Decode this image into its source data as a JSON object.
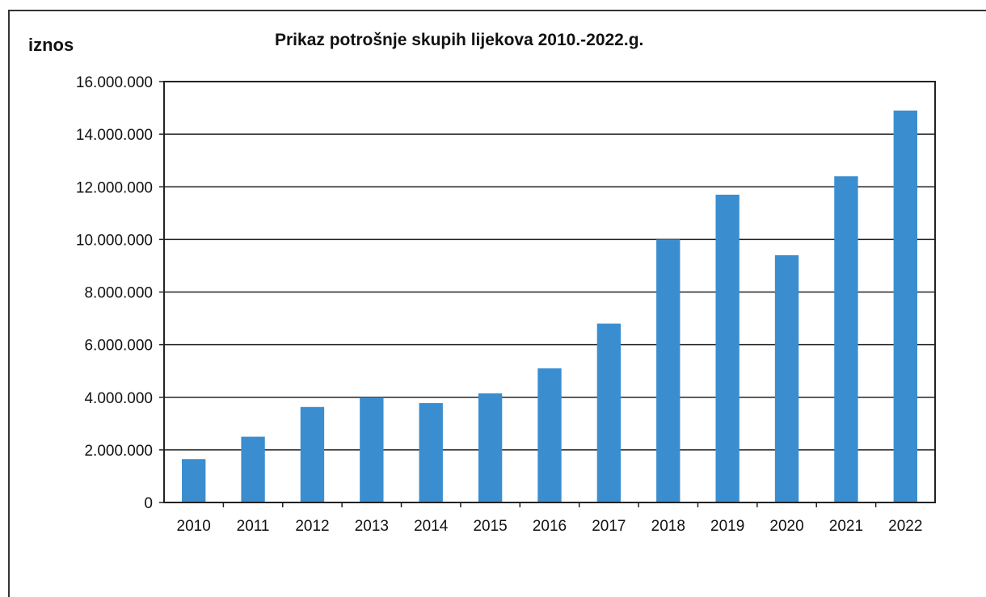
{
  "chart_data": {
    "type": "bar",
    "title": "Prikaz potrošnje skupih lijekova 2010.-2022.g.",
    "ylabel": "iznos",
    "xlabel": "",
    "categories": [
      "2010",
      "2011",
      "2012",
      "2013",
      "2014",
      "2015",
      "2016",
      "2017",
      "2018",
      "2019",
      "2020",
      "2021",
      "2022"
    ],
    "values": [
      1650000,
      2500000,
      3630000,
      4000000,
      3780000,
      4150000,
      5100000,
      6800000,
      10000000,
      11700000,
      9400000,
      12400000,
      14900000
    ],
    "ylim": [
      0,
      16000000
    ],
    "yticks": [
      "0",
      "2.000.000",
      "4.000.000",
      "6.000.000",
      "8.000.000",
      "10.000.000",
      "12.000.000",
      "14.000.000",
      "16.000.000"
    ],
    "grid": true,
    "bar_color": "#3a8ed0",
    "legend": "none"
  }
}
